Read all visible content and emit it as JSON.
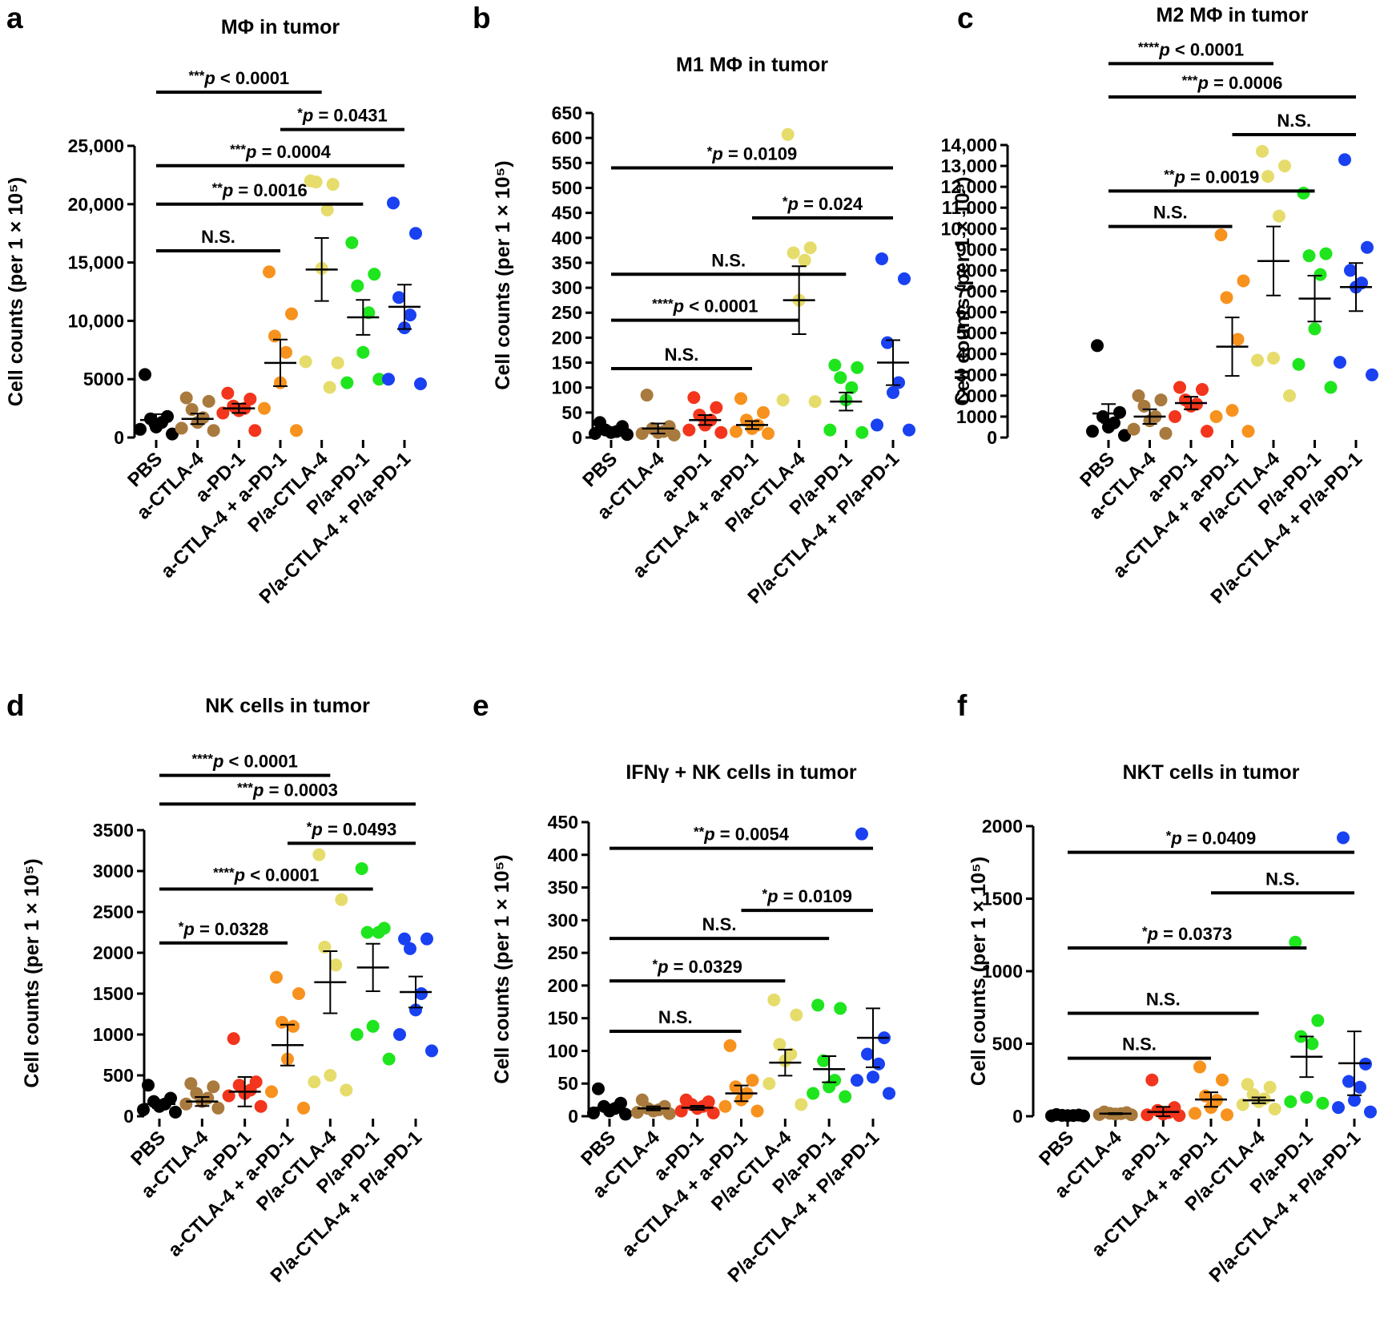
{
  "colors": {
    "PBS": "#000000",
    "a-CTLA-4": "#a87a3e",
    "a-PD-1": "#f2351c",
    "a-CTLA-4 + a-PD-1": "#f7921e",
    "P/a-CTLA-4": "#e6dc6b",
    "P/a-PD-1": "#1ee51e",
    "P/a-CTLA-4 + P/a-PD-1": "#1941f2"
  },
  "chart_data": [
    {
      "panel": "a",
      "type": "scatter",
      "title": "MΦ in tumor",
      "ylabel": "Cell counts (per 1 × 10⁵)",
      "categories": [
        "PBS",
        "a-CTLA-4",
        "a-PD-1",
        "a-CTLA-4 + a-PD-1",
        "P/a-CTLA-4",
        "P/a-PD-1",
        "P/a-CTLA-4 + P/a-PD-1"
      ],
      "ylim": [
        0,
        25000
      ],
      "yticks": [
        0,
        5000,
        10000,
        15000,
        20000,
        25000
      ],
      "yticklabels": [
        "0",
        "5000",
        "10,000",
        "15,000",
        "20,000",
        "25,000"
      ],
      "points": [
        [
          5400,
          1800,
          1600,
          1300,
          900,
          700,
          300
        ],
        [
          3400,
          3100,
          2400,
          1700,
          1300,
          800,
          600
        ],
        [
          3800,
          3300,
          2700,
          2500,
          2300,
          2100,
          600
        ],
        [
          14200,
          10600,
          8700,
          7300,
          4700,
          2500,
          600
        ],
        [
          22000,
          21700,
          21900,
          19500,
          14500,
          6500,
          6400,
          4300
        ],
        [
          16700,
          14000,
          13000,
          10700,
          7300,
          4700,
          5000
        ],
        [
          20100,
          17500,
          12000,
          10500,
          9400,
          5000,
          4600
        ]
      ],
      "mean": [
        1500,
        1600,
        2500,
        6400,
        14400,
        10300,
        11200
      ],
      "sem": [
        500,
        450,
        400,
        2000,
        2700,
        1500,
        1900
      ],
      "significance": [
        {
          "from": 0,
          "to": 3,
          "y": 16000,
          "label": "N.S."
        },
        {
          "from": 0,
          "to": 5,
          "y": 20000,
          "label": "**p = 0.0016"
        },
        {
          "from": 0,
          "to": 6,
          "y": 23300,
          "label": "***p = 0.0004"
        },
        {
          "from": 3,
          "to": 6,
          "y": 26400,
          "label": "*p = 0.0431"
        },
        {
          "from": 0,
          "to": 4,
          "y": 29600,
          "label": "***p < 0.0001"
        }
      ]
    },
    {
      "panel": "b",
      "type": "scatter",
      "title": "M1 MΦ in tumor",
      "ylabel": "Cell counts (per 1 × 10⁵)",
      "categories": [
        "PBS",
        "a-CTLA-4",
        "a-PD-1",
        "a-CTLA-4 + a-PD-1",
        "P/a-CTLA-4",
        "P/a-PD-1",
        "P/a-CTLA-4 + P/a-PD-1"
      ],
      "ylim": [
        0,
        650
      ],
      "yticks": [
        0,
        50,
        100,
        150,
        200,
        250,
        300,
        350,
        400,
        450,
        500,
        550,
        600,
        650
      ],
      "yticklabels": [
        "0",
        "50",
        "100",
        "150",
        "200",
        "250",
        "300",
        "350",
        "400",
        "450",
        "500",
        "550",
        "600",
        "650"
      ],
      "points": [
        [
          30,
          22,
          15,
          12,
          10,
          8,
          6
        ],
        [
          85,
          22,
          18,
          12,
          10,
          8,
          5
        ],
        [
          80,
          60,
          45,
          35,
          25,
          15,
          10
        ],
        [
          78,
          50,
          35,
          25,
          18,
          12,
          8
        ],
        [
          607,
          380,
          370,
          355,
          275,
          75,
          72
        ],
        [
          145,
          140,
          120,
          100,
          75,
          15,
          10
        ],
        [
          358,
          318,
          190,
          110,
          90,
          25,
          15
        ]
      ],
      "mean": [
        12,
        18,
        35,
        25,
        275,
        72,
        150
      ],
      "sem": [
        4,
        10,
        10,
        8,
        68,
        18,
        45
      ],
      "significance": [
        {
          "from": 0,
          "to": 3,
          "y": 138,
          "label": "N.S."
        },
        {
          "from": 0,
          "to": 4,
          "y": 235,
          "label": "****p < 0.0001"
        },
        {
          "from": 0,
          "to": 5,
          "y": 327,
          "label": "N.S."
        },
        {
          "from": 3,
          "to": 6,
          "y": 440,
          "label": "*p = 0.024"
        },
        {
          "from": 0,
          "to": 6,
          "y": 540,
          "label": "*p = 0.0109"
        }
      ]
    },
    {
      "panel": "c",
      "type": "scatter",
      "title": "M2 MΦ in tumor",
      "ylabel": "Cell counts (per 1 × 10⁵)",
      "categories": [
        "PBS",
        "a-CTLA-4",
        "a-PD-1",
        "a-CTLA-4 + a-PD-1",
        "P/a-CTLA-4",
        "P/a-PD-1",
        "P/a-CTLA-4 + P/a-PD-1"
      ],
      "ylim": [
        0,
        14000
      ],
      "yticks": [
        0,
        1000,
        2000,
        3000,
        4000,
        5000,
        6000,
        7000,
        8000,
        9000,
        10000,
        11000,
        12000,
        13000,
        14000
      ],
      "yticklabels": [
        "0",
        "1000",
        "2000",
        "3000",
        "4000",
        "5000",
        "6000",
        "7000",
        "8000",
        "9000",
        "10,000",
        "11,000",
        "12,000",
        "13,000",
        "14,000"
      ],
      "points": [
        [
          4400,
          1200,
          1000,
          700,
          500,
          300,
          100
        ],
        [
          2000,
          1800,
          1500,
          1000,
          800,
          400,
          200
        ],
        [
          2400,
          2300,
          1800,
          1600,
          1500,
          1000,
          300
        ],
        [
          9700,
          7500,
          6700,
          4700,
          1300,
          1000,
          300
        ],
        [
          13700,
          13000,
          12500,
          10600,
          3800,
          3700,
          2000
        ],
        [
          11700,
          8800,
          8700,
          7800,
          5200,
          3500,
          2400
        ],
        [
          13300,
          9100,
          8000,
          7400,
          7200,
          3600,
          3000
        ]
      ],
      "mean": [
        1150,
        1000,
        1650,
        4350,
        8450,
        6650,
        7200
      ],
      "sem": [
        450,
        350,
        300,
        1400,
        1650,
        1100,
        1150
      ],
      "significance": [
        {
          "from": 0,
          "to": 3,
          "y": 10100,
          "label": "N.S."
        },
        {
          "from": 0,
          "to": 5,
          "y": 11800,
          "label": "**p = 0.0019"
        },
        {
          "from": 3,
          "to": 6,
          "y": 14500,
          "label": "N.S."
        },
        {
          "from": 0,
          "to": 6,
          "y": 16300,
          "label": "***p = 0.0006"
        },
        {
          "from": 0,
          "to": 4,
          "y": 17900,
          "label": "****p < 0.0001"
        }
      ]
    },
    {
      "panel": "d",
      "type": "scatter",
      "title": "NK cells in tumor",
      "ylabel": "Cell counts (per 1 × 10⁵)",
      "categories": [
        "PBS",
        "a-CTLA-4",
        "a-PD-1",
        "a-CTLA-4 + a-PD-1",
        "P/a-CTLA-4",
        "P/a-PD-1",
        "P/a-CTLA-4 + P/a-PD-1"
      ],
      "ylim": [
        0,
        3500
      ],
      "yticks": [
        0,
        500,
        1000,
        1500,
        2000,
        2500,
        3000,
        3500
      ],
      "yticklabels": [
        "0",
        "500",
        "1000",
        "1500",
        "2000",
        "2500",
        "3000",
        "3500"
      ],
      "points": [
        [
          380,
          220,
          180,
          150,
          120,
          80,
          50
        ],
        [
          400,
          360,
          280,
          220,
          180,
          150,
          100
        ],
        [
          950,
          420,
          380,
          320,
          280,
          250,
          120
        ],
        [
          1700,
          1500,
          1150,
          1100,
          700,
          300,
          100
        ],
        [
          3200,
          2650,
          2070,
          1850,
          500,
          420,
          320
        ],
        [
          3030,
          2300,
          2250,
          2250,
          1100,
          1000,
          700
        ],
        [
          2170,
          2170,
          2050,
          1500,
          1300,
          1000,
          800
        ]
      ],
      "mean": [
        150,
        180,
        300,
        870,
        1640,
        1820,
        1520
      ],
      "sem": [
        50,
        55,
        180,
        250,
        380,
        290,
        190
      ],
      "significance": [
        {
          "from": 0,
          "to": 3,
          "y": 2120,
          "label": "*p = 0.0328"
        },
        {
          "from": 0,
          "to": 5,
          "y": 2780,
          "label": "****p < 0.0001"
        },
        {
          "from": 3,
          "to": 6,
          "y": 3340,
          "label": "*p = 0.0493"
        },
        {
          "from": 0,
          "to": 6,
          "y": 3820,
          "label": "***p = 0.0003"
        },
        {
          "from": 0,
          "to": 4,
          "y": 4170,
          "label": "****p < 0.0001"
        }
      ]
    },
    {
      "panel": "e",
      "type": "scatter",
      "title": "IFNγ + NK cells in tumor",
      "ylabel": "Cell counts (per 1 × 10⁵)",
      "categories": [
        "PBS",
        "a-CTLA-4",
        "a-PD-1",
        "a-CTLA-4 + a-PD-1",
        "P/a-CTLA-4",
        "P/a-PD-1",
        "P/a-CTLA-4 + P/a-PD-1"
      ],
      "ylim": [
        0,
        450
      ],
      "yticks": [
        0,
        50,
        100,
        150,
        200,
        250,
        300,
        350,
        400,
        450
      ],
      "yticklabels": [
        "0",
        "50",
        "100",
        "150",
        "200",
        "250",
        "300",
        "350",
        "400",
        "450"
      ],
      "points": [
        [
          42,
          20,
          15,
          12,
          8,
          5,
          3
        ],
        [
          25,
          15,
          12,
          10,
          8,
          6,
          4
        ],
        [
          25,
          22,
          18,
          15,
          12,
          8,
          5
        ],
        [
          108,
          55,
          45,
          35,
          25,
          15,
          8
        ],
        [
          178,
          155,
          110,
          95,
          85,
          50,
          18
        ],
        [
          170,
          165,
          85,
          55,
          45,
          35,
          30
        ],
        [
          432,
          120,
          95,
          80,
          60,
          55,
          35
        ]
      ],
      "mean": [
        13,
        12,
        13,
        35,
        82,
        72,
        120
      ],
      "sem": [
        5,
        3,
        3,
        12,
        20,
        20,
        45
      ],
      "significance": [
        {
          "from": 0,
          "to": 3,
          "y": 130,
          "label": "N.S."
        },
        {
          "from": 0,
          "to": 4,
          "y": 207,
          "label": "*p = 0.0329"
        },
        {
          "from": 0,
          "to": 5,
          "y": 272,
          "label": "N.S."
        },
        {
          "from": 3,
          "to": 6,
          "y": 315,
          "label": "*p = 0.0109"
        },
        {
          "from": 0,
          "to": 6,
          "y": 410,
          "label": "**p = 0.0054"
        }
      ]
    },
    {
      "panel": "f",
      "type": "scatter",
      "title": "NKT cells in tumor",
      "ylabel": "Cell counts (per 1 × 10⁵)",
      "categories": [
        "PBS",
        "a-CTLA-4",
        "a-PD-1",
        "a-CTLA-4 + a-PD-1",
        "P/a-CTLA-4",
        "P/a-PD-1",
        "P/a-CTLA-4 + P/a-PD-1"
      ],
      "ylim": [
        0,
        2000
      ],
      "yticks": [
        0,
        500,
        1000,
        1500,
        2000
      ],
      "yticklabels": [
        "0",
        "500",
        "1000",
        "1500",
        "2000"
      ],
      "points": [
        [
          12,
          8,
          6,
          5,
          4,
          3,
          2
        ],
        [
          30,
          25,
          20,
          18,
          15,
          12,
          10
        ],
        [
          250,
          60,
          40,
          25,
          15,
          10,
          5
        ],
        [
          340,
          250,
          140,
          110,
          60,
          20,
          10
        ],
        [
          220,
          200,
          150,
          120,
          100,
          80,
          50
        ],
        [
          1200,
          660,
          550,
          500,
          130,
          100,
          90
        ],
        [
          1920,
          360,
          240,
          200,
          110,
          60,
          30
        ]
      ],
      "mean": [
        5,
        18,
        30,
        115,
        110,
        410,
        365
      ],
      "sem": [
        2,
        4,
        35,
        50,
        20,
        140,
        220
      ],
      "significance": [
        {
          "from": 0,
          "to": 3,
          "y": 400,
          "label": "N.S."
        },
        {
          "from": 0,
          "to": 4,
          "y": 710,
          "label": "N.S."
        },
        {
          "from": 0,
          "to": 5,
          "y": 1160,
          "label": "*p = 0.0373"
        },
        {
          "from": 3,
          "to": 6,
          "y": 1540,
          "label": "N.S."
        },
        {
          "from": 0,
          "to": 6,
          "y": 1820,
          "label": "*p = 0.0409"
        }
      ]
    }
  ]
}
